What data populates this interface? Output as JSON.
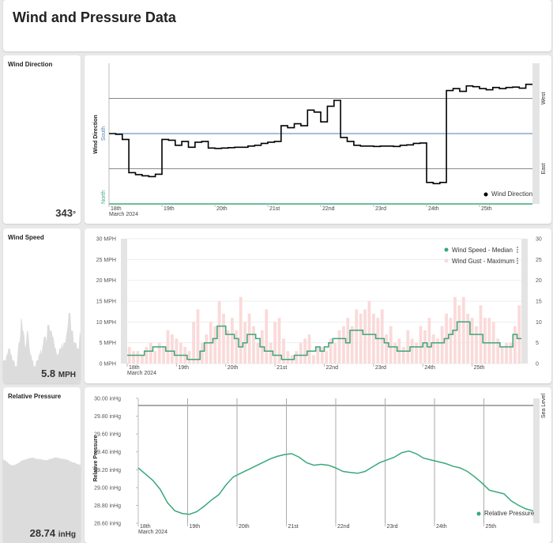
{
  "header": {
    "title": "Wind and Pressure Data"
  },
  "wind_direction": {
    "title": "Wind Direction",
    "value": "343",
    "unit": "°",
    "chart_data": {
      "type": "line",
      "ylabel": "Wind Direction",
      "y_tick_labels": [
        "North",
        "East",
        "South",
        "West"
      ],
      "x_tick_labels": [
        "18th",
        "19th",
        "20th",
        "21st",
        "22nd",
        "23rd",
        "24th",
        "25th"
      ],
      "x_sublabel": "March 2024",
      "legend": [
        "Wind Direction"
      ],
      "colors": {
        "line": "#000000",
        "north": "#3aa87a",
        "south": "#4a7fb5",
        "grid": "#888888"
      },
      "values": [
        180,
        178,
        165,
        80,
        75,
        72,
        70,
        76,
        165,
        163,
        150,
        160,
        145,
        158,
        160,
        143,
        142,
        143,
        144,
        145,
        145,
        148,
        150,
        155,
        158,
        160,
        200,
        195,
        205,
        200,
        240,
        235,
        210,
        250,
        265,
        170,
        160,
        150,
        148,
        148,
        147,
        148,
        148,
        147,
        150,
        151,
        155,
        156,
        55,
        52,
        55,
        290,
        295,
        288,
        302,
        300,
        295,
        292,
        298,
        295,
        298,
        299,
        296,
        306
      ],
      "ylim": [
        0,
        360
      ]
    }
  },
  "wind_speed": {
    "title": "Wind Speed",
    "value": "5.8",
    "unit": "MPH",
    "chart_data": {
      "type": "bar",
      "y_tick_labels": [
        "0 MPH",
        "5 MPH",
        "10 MPH",
        "15 MPH",
        "20 MPH",
        "25 MPH",
        "30 MPH"
      ],
      "y_right_tick_labels": [
        "0",
        "5",
        "10",
        "15",
        "20",
        "25",
        "30"
      ],
      "x_tick_labels": [
        "18th",
        "19th",
        "20th",
        "21st",
        "22nd",
        "23rd",
        "24th",
        "25th"
      ],
      "x_sublabel": "March 2024",
      "ylim": [
        0,
        30
      ],
      "series": [
        {
          "name": "Wind Speed - Median",
          "color": "#3aa87a",
          "values": [
            2,
            2,
            2,
            2,
            3,
            3,
            4,
            4,
            4,
            3,
            3,
            2,
            2,
            2,
            1,
            1,
            1,
            3,
            5,
            5,
            6,
            9,
            9,
            7,
            7,
            6,
            4,
            5,
            7,
            7,
            6,
            4,
            3,
            3,
            2,
            2,
            1,
            1,
            1,
            2,
            2,
            2,
            3,
            3,
            4,
            3,
            4,
            5,
            6,
            6,
            6,
            5,
            8,
            8,
            8,
            7,
            7,
            7,
            6,
            6,
            5,
            4,
            4,
            3,
            3,
            3,
            4,
            4,
            4,
            5,
            4,
            5,
            5,
            5,
            6,
            7,
            8,
            10,
            10,
            10,
            7,
            7,
            7,
            5,
            5,
            5,
            5,
            4,
            4,
            4,
            7,
            6
          ]
        },
        {
          "name": "Wind Gust - Maximum",
          "color": "#fadada",
          "values": [
            4,
            3,
            3,
            2,
            4,
            5,
            3,
            5,
            4,
            8,
            7,
            6,
            5,
            4,
            3,
            10,
            13,
            5,
            7,
            10,
            9,
            15,
            12,
            8,
            11,
            8,
            16,
            10,
            12,
            9,
            5,
            8,
            13,
            5,
            10,
            11,
            6,
            3,
            2,
            3,
            5,
            6,
            7,
            2,
            4,
            4,
            3,
            6,
            5,
            8,
            9,
            11,
            9,
            13,
            12,
            13,
            15,
            12,
            11,
            13,
            7,
            9,
            5,
            6,
            4,
            8,
            6,
            5,
            9,
            8,
            11,
            7,
            6,
            9,
            12,
            11,
            16,
            14,
            16,
            12,
            11,
            9,
            14,
            11,
            11,
            10,
            6,
            4,
            5,
            5,
            9,
            14
          ]
        }
      ]
    }
  },
  "relative_pressure": {
    "title": "Relative Pressure",
    "value": "28.74",
    "unit": "inHg",
    "chart_data": {
      "type": "line",
      "ylabel": "Relative Pressure",
      "y_tick_labels": [
        "28.60 inHg",
        "28.80 inHg",
        "29.00 inHg",
        "29.20 inHg",
        "29.40 inHg",
        "29.60 inHg",
        "29.80 inHg",
        "30.00 inHg"
      ],
      "x_tick_labels": [
        "18th",
        "19th",
        "20th",
        "21st",
        "22nd",
        "23rd",
        "24th",
        "25th"
      ],
      "x_sublabel": "March 2024",
      "ylim": [
        28.6,
        30.0
      ],
      "reference_line": {
        "label": "Sea Level",
        "value": 29.92
      },
      "legend": [
        "Relative Pressure"
      ],
      "colors": {
        "line": "#3aa87a",
        "reference": "#555555",
        "grid": "#aaaaaa"
      },
      "values": [
        29.22,
        29.15,
        29.08,
        28.98,
        28.83,
        28.74,
        28.71,
        28.7,
        28.73,
        28.79,
        28.86,
        28.92,
        29.03,
        29.12,
        29.16,
        29.2,
        29.24,
        29.28,
        29.32,
        29.35,
        29.37,
        29.38,
        29.34,
        29.28,
        29.25,
        29.26,
        29.25,
        29.22,
        29.18,
        29.17,
        29.16,
        29.18,
        29.23,
        29.28,
        29.31,
        29.34,
        29.39,
        29.41,
        29.38,
        29.33,
        29.31,
        29.29,
        29.27,
        29.24,
        29.22,
        29.18,
        29.12,
        29.05,
        28.97,
        28.95,
        28.93,
        28.85,
        28.8,
        28.76,
        28.74
      ]
    }
  }
}
